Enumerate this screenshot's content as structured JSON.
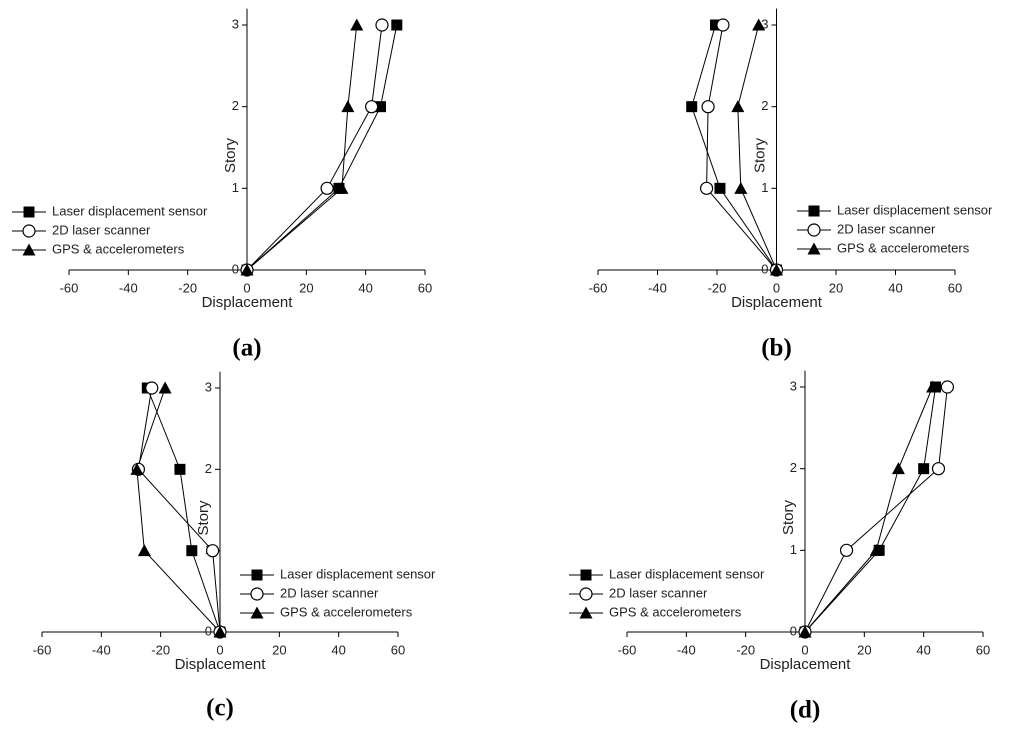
{
  "chart_data": [
    {
      "type": "line",
      "label": "(a)",
      "xlabel": "Displacement",
      "ylabel": "Story",
      "xlim": [
        -60,
        60
      ],
      "xticks": [
        -60,
        -40,
        -20,
        0,
        20,
        40,
        60
      ],
      "ylim": [
        0,
        3.2
      ],
      "yticks": [
        0,
        1,
        2,
        3
      ],
      "series": [
        {
          "name": "Laser displacement sensor",
          "marker": "square",
          "color": "#000000",
          "x": [
            0,
            31,
            45,
            50.5
          ],
          "values": [
            0,
            1,
            2,
            3
          ]
        },
        {
          "name": "2D laser scanner",
          "marker": "circle",
          "color": "#000000",
          "x": [
            0,
            27,
            42,
            45.5
          ],
          "values": [
            0,
            1,
            2,
            3
          ]
        },
        {
          "name": "GPS & accelerometers",
          "marker": "triangle",
          "color": "#000000",
          "x": [
            0,
            32,
            34,
            37
          ],
          "values": [
            0,
            1,
            2,
            3
          ]
        }
      ]
    },
    {
      "type": "line",
      "label": "(b)",
      "xlabel": "Displacement",
      "ylabel": "Story",
      "xlim": [
        -60,
        60
      ],
      "xticks": [
        -60,
        -40,
        -20,
        0,
        20,
        40,
        60
      ],
      "ylim": [
        0,
        3.2
      ],
      "yticks": [
        0,
        1,
        2,
        3
      ],
      "series": [
        {
          "name": "Laser displacement sensor",
          "marker": "square",
          "color": "#000000",
          "x": [
            0,
            -19,
            -28.5,
            -20.5
          ],
          "values": [
            0,
            1,
            2,
            3
          ]
        },
        {
          "name": "2D laser scanner",
          "marker": "circle",
          "color": "#000000",
          "x": [
            0,
            -23.5,
            -23,
            -18
          ],
          "values": [
            0,
            1,
            2,
            3
          ]
        },
        {
          "name": "GPS & accelerometers",
          "marker": "triangle",
          "color": "#000000",
          "x": [
            0,
            -12,
            -13,
            -6
          ],
          "values": [
            0,
            1,
            2,
            3
          ]
        }
      ]
    },
    {
      "type": "line",
      "label": "(c)",
      "xlabel": "Displacement",
      "ylabel": "Story",
      "xlim": [
        -60,
        60
      ],
      "xticks": [
        -60,
        -40,
        -20,
        0,
        20,
        40,
        60
      ],
      "ylim": [
        0,
        3.2
      ],
      "yticks": [
        0,
        1,
        2,
        3
      ],
      "series": [
        {
          "name": "Laser displacement sensor",
          "marker": "square",
          "color": "#000000",
          "x": [
            0,
            -9.5,
            -13.5,
            -24.5
          ],
          "values": [
            0,
            1,
            2,
            3
          ]
        },
        {
          "name": "2D laser scanner",
          "marker": "circle",
          "color": "#000000",
          "x": [
            0,
            -2.5,
            -27.5,
            -23
          ],
          "values": [
            0,
            1,
            2,
            3
          ]
        },
        {
          "name": "GPS & accelerometers",
          "marker": "triangle",
          "color": "#000000",
          "x": [
            0,
            -25.5,
            -28,
            -18.5
          ],
          "values": [
            0,
            1,
            2,
            3
          ]
        }
      ]
    },
    {
      "type": "line",
      "label": "(d)",
      "xlabel": "Displacement",
      "ylabel": "Story",
      "xlim": [
        -60,
        60
      ],
      "xticks": [
        -60,
        -40,
        -20,
        0,
        20,
        40,
        60
      ],
      "ylim": [
        0,
        3.2
      ],
      "yticks": [
        0,
        1,
        2,
        3
      ],
      "series": [
        {
          "name": "Laser displacement sensor",
          "marker": "square",
          "color": "#000000",
          "x": [
            0,
            25,
            40,
            44
          ],
          "values": [
            0,
            1,
            2,
            3
          ]
        },
        {
          "name": "2D laser scanner",
          "marker": "circle",
          "color": "#000000",
          "x": [
            0,
            14,
            45,
            48
          ],
          "values": [
            0,
            1,
            2,
            3
          ]
        },
        {
          "name": "GPS & accelerometers",
          "marker": "triangle",
          "color": "#000000",
          "x": [
            0,
            24,
            31.5,
            43
          ],
          "values": [
            0,
            1,
            2,
            3
          ]
        }
      ]
    }
  ]
}
